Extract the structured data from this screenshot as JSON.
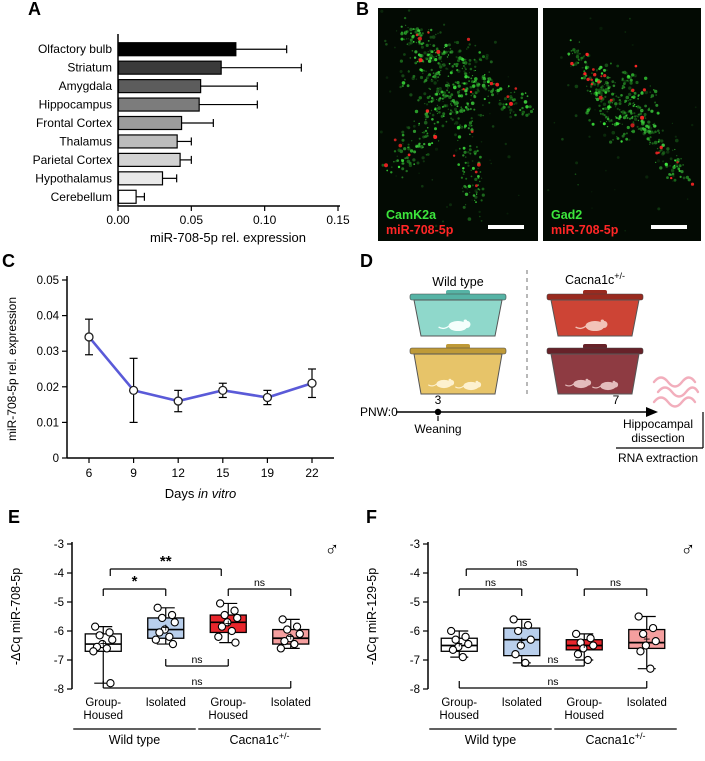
{
  "figure": {
    "panel_labels": {
      "A": "A",
      "B": "B",
      "C": "C",
      "D": "D",
      "E": "E",
      "F": "F"
    }
  },
  "panel_b": {
    "images": [
      {
        "marker_label": "CamK2a",
        "probe_label": "miR-708-5p",
        "marker_color": "#3ce63c",
        "probe_color": "#ff2626"
      },
      {
        "marker_label": "Gad2",
        "probe_label": "miR-708-5p",
        "marker_color": "#3ce63c",
        "probe_color": "#ff2626"
      }
    ],
    "scalebar_color": "#ffffff"
  },
  "panel_d": {
    "wild_type_label": "Wild type",
    "mutant_label": "Cacna1c",
    "mutant_sup": "+/-",
    "timeline_start_label": "PNW:0",
    "weaning_week_label": "3",
    "dissection_week_label": "7",
    "weaning_label": "Weaning",
    "dissection_label_line1": "Hippocampal",
    "dissection_label_line2": "dissection",
    "rna_label": "RNA extraction",
    "rna_color": "#f2aebc",
    "cages": [
      {
        "fill": "#8fd8cb",
        "lid": "#56b3a5",
        "mouse": "#f4fffc",
        "mice": 1
      },
      {
        "fill": "#cd4435",
        "lid": "#992a1f",
        "mouse": "#f2c3b8",
        "mice": 1
      },
      {
        "fill": "#e7c469",
        "lid": "#bf9a38",
        "mouse": "#fdf1cf",
        "mice": 2
      },
      {
        "fill": "#8e3b42",
        "lid": "#672229",
        "mouse": "#e3bcbc",
        "mice": 2
      }
    ]
  },
  "chart_data": [
    {
      "id": "A",
      "type": "bar",
      "orientation": "horizontal",
      "categories": [
        "Olfactory bulb",
        "Striatum",
        "Amygdala",
        "Hippocampus",
        "Frontal Cortex",
        "Thalamus",
        "Parietal Cortex",
        "Hypothalamus",
        "Cerebellum"
      ],
      "values": [
        0.08,
        0.07,
        0.056,
        0.055,
        0.043,
        0.04,
        0.042,
        0.03,
        0.012
      ],
      "errors": [
        0.035,
        0.055,
        0.039,
        0.04,
        0.022,
        0.01,
        0.008,
        0.01,
        0.006
      ],
      "bar_colors": [
        "#000000",
        "#3a3a3a",
        "#5c5c5c",
        "#7c7c7c",
        "#9c9c9c",
        "#bcbcbc",
        "#d3d3d3",
        "#e9e9e9",
        "#ffffff"
      ],
      "xlabel": "miR-708-5p rel. expression",
      "xlim": [
        0,
        0.15
      ],
      "xticks": [
        0,
        0.05,
        0.1,
        0.15
      ]
    },
    {
      "id": "C",
      "type": "line",
      "x": [
        6,
        9,
        12,
        15,
        19,
        22
      ],
      "values": [
        0.034,
        0.019,
        0.016,
        0.019,
        0.017,
        0.021
      ],
      "errors": [
        0.005,
        0.009,
        0.003,
        0.002,
        0.002,
        0.004
      ],
      "xlabel_parts": [
        {
          "text": "Days ",
          "italic": false
        },
        {
          "text": "in vitro",
          "italic": true
        }
      ],
      "ylabel": "miR-708-5p rel. expression",
      "ylim": [
        0,
        0.05
      ],
      "yticks": [
        0,
        0.01,
        0.02,
        0.03,
        0.04,
        0.05
      ],
      "line_color": "#5a5ad8",
      "marker": "open-circle"
    },
    {
      "id": "E",
      "type": "box",
      "ylabel": "-ΔCq miR-708-5p",
      "sex_symbol": "♂",
      "ylim": [
        -8,
        -3
      ],
      "yticks": [
        -3,
        -4,
        -5,
        -6,
        -7,
        -8
      ],
      "groups": [
        {
          "xlabel_lines": [
            "Group-",
            "Housed"
          ],
          "fill": "#ffffff",
          "median": -6.45,
          "q1": -6.7,
          "q3": -6.1,
          "whisker_low": -7.8,
          "whisker_high": -5.85,
          "mean": -6.45,
          "points": [
            -5.85,
            -6.05,
            -6.15,
            -6.3,
            -6.45,
            -6.55,
            -6.6,
            -6.7,
            -7.8
          ]
        },
        {
          "xlabel_lines": [
            "Isolated"
          ],
          "fill": "#b9cfec",
          "median": -5.95,
          "q1": -6.25,
          "q3": -5.55,
          "whisker_low": -6.45,
          "whisker_high": -5.2,
          "mean": -5.9,
          "points": [
            -5.2,
            -5.45,
            -5.55,
            -5.7,
            -5.95,
            -6.05,
            -6.2,
            -6.3,
            -6.45
          ]
        },
        {
          "xlabel_lines": [
            "Group-",
            "Housed"
          ],
          "fill": "#e8262c",
          "median": -5.7,
          "q1": -6.05,
          "q3": -5.45,
          "whisker_low": -6.4,
          "whisker_high": -5.05,
          "mean": -5.75,
          "points": [
            -5.05,
            -5.3,
            -5.45,
            -5.55,
            -5.7,
            -5.85,
            -6.0,
            -6.2,
            -6.4
          ]
        },
        {
          "xlabel_lines": [
            "Isolated"
          ],
          "fill": "#f59f9f",
          "median": -6.25,
          "q1": -6.45,
          "q3": -5.95,
          "whisker_low": -6.6,
          "whisker_high": -5.6,
          "mean": -6.2,
          "points": [
            -5.6,
            -5.85,
            -5.95,
            -6.1,
            -6.25,
            -6.35,
            -6.45,
            -6.6
          ]
        }
      ],
      "genotypes": [
        {
          "label": "Wild type",
          "sup": ""
        },
        {
          "label": "Cacna1c",
          "sup": "+/-"
        }
      ],
      "brackets": [
        {
          "from": 0,
          "to": 1,
          "label": "*",
          "side": "top",
          "level": 0
        },
        {
          "from": 0,
          "to": 2,
          "label": "**",
          "side": "top",
          "level": 1
        },
        {
          "from": 2,
          "to": 3,
          "label": "ns",
          "side": "top",
          "level": 0
        },
        {
          "from": 1,
          "to": 2,
          "label": "ns",
          "side": "bottom",
          "level": 0
        },
        {
          "from": 0,
          "to": 3,
          "label": "ns",
          "side": "bottom",
          "level": 1
        }
      ]
    },
    {
      "id": "F",
      "type": "box",
      "ylabel": "-ΔCq miR-129-5p",
      "sex_symbol": "♂",
      "ylim": [
        -8,
        -3
      ],
      "yticks": [
        -3,
        -4,
        -5,
        -6,
        -7,
        -8
      ],
      "groups": [
        {
          "xlabel_lines": [
            "Group-",
            "Housed"
          ],
          "fill": "#ffffff",
          "median": -6.5,
          "q1": -6.7,
          "q3": -6.25,
          "whisker_low": -6.9,
          "whisker_high": -6.0,
          "mean": -6.45,
          "points": [
            -6.0,
            -6.2,
            -6.3,
            -6.45,
            -6.55,
            -6.65,
            -6.9
          ]
        },
        {
          "xlabel_lines": [
            "Isolated"
          ],
          "fill": "#b9cfec",
          "median": -6.3,
          "q1": -6.85,
          "q3": -5.9,
          "whisker_low": -7.1,
          "whisker_high": -5.6,
          "mean": -6.35,
          "points": [
            -5.6,
            -5.8,
            -6.0,
            -6.3,
            -6.5,
            -6.8,
            -7.1
          ]
        },
        {
          "xlabel_lines": [
            "Group-",
            "Housed"
          ],
          "fill": "#e8262c",
          "median": -6.5,
          "q1": -6.65,
          "q3": -6.3,
          "whisker_low": -7.0,
          "whisker_high": -6.1,
          "mean": -6.5,
          "points": [
            -6.1,
            -6.25,
            -6.4,
            -6.5,
            -6.6,
            -6.8,
            -7.0
          ]
        },
        {
          "xlabel_lines": [
            "Isolated"
          ],
          "fill": "#f59f9f",
          "median": -6.4,
          "q1": -6.6,
          "q3": -5.95,
          "whisker_low": -7.3,
          "whisker_high": -5.5,
          "mean": -6.3,
          "points": [
            -5.5,
            -5.9,
            -6.1,
            -6.35,
            -6.5,
            -6.7,
            -7.3
          ]
        }
      ],
      "genotypes": [
        {
          "label": "Wild type",
          "sup": ""
        },
        {
          "label": "Cacna1c",
          "sup": "+/-"
        }
      ],
      "brackets": [
        {
          "from": 0,
          "to": 1,
          "label": "ns",
          "side": "top",
          "level": 0
        },
        {
          "from": 0,
          "to": 2,
          "label": "ns",
          "side": "top",
          "level": 1
        },
        {
          "from": 2,
          "to": 3,
          "label": "ns",
          "side": "top",
          "level": 0
        },
        {
          "from": 1,
          "to": 2,
          "label": "ns",
          "side": "bottom",
          "level": 0
        },
        {
          "from": 0,
          "to": 3,
          "label": "ns",
          "side": "bottom",
          "level": 1
        }
      ]
    }
  ]
}
